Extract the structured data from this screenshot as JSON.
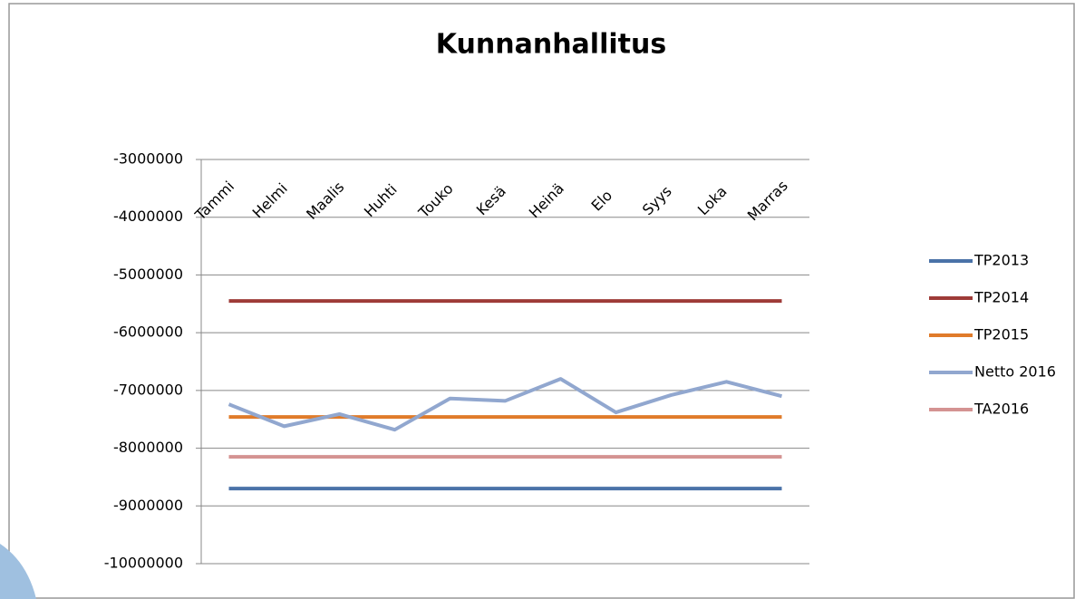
{
  "chart_data": {
    "type": "line",
    "title": "Kunnanhallitus",
    "categories": [
      "Tammi",
      "Helmi",
      "Maalis",
      "Huhti",
      "Touko",
      "Kesä",
      "Heinä",
      "Elo",
      "Syys",
      "Loka",
      "Marras"
    ],
    "ylim": [
      -10000000,
      -3000000
    ],
    "yticks": [
      -10000000,
      -9000000,
      -8000000,
      -7000000,
      -6000000,
      -5000000,
      -4000000,
      -3000000
    ],
    "grid": true,
    "legend": "right",
    "series": [
      {
        "name": "TP2013",
        "color": "#4a72a8",
        "values": [
          -8700000,
          -8700000,
          -8700000,
          -8700000,
          -8700000,
          -8700000,
          -8700000,
          -8700000,
          -8700000,
          -8700000,
          -8700000
        ]
      },
      {
        "name": "TP2014",
        "color": "#9e3b38",
        "values": [
          -5450000,
          -5450000,
          -5450000,
          -5450000,
          -5450000,
          -5450000,
          -5450000,
          -5450000,
          -5450000,
          -5450000,
          -5450000
        ]
      },
      {
        "name": "TP2015",
        "color": "#e07b2a",
        "values": [
          -7460000,
          -7460000,
          -7460000,
          -7460000,
          -7460000,
          -7460000,
          -7460000,
          -7460000,
          -7460000,
          -7460000,
          -7460000
        ]
      },
      {
        "name": "Netto 2016",
        "color": "#91a7cf",
        "values": [
          -7240000,
          -7620000,
          -7410000,
          -7680000,
          -7140000,
          -7180000,
          -6800000,
          -7380000,
          -7080000,
          -6850000,
          -7100000
        ]
      },
      {
        "name": "TA2016",
        "color": "#d49392",
        "values": [
          -8150000,
          -8150000,
          -8150000,
          -8150000,
          -8150000,
          -8150000,
          -8150000,
          -8150000,
          -8150000,
          -8150000,
          -8150000
        ]
      }
    ]
  }
}
